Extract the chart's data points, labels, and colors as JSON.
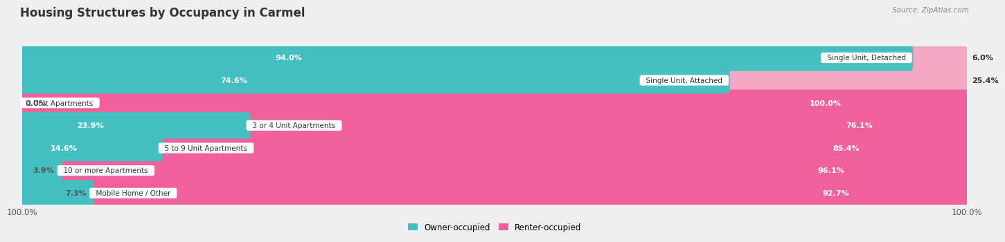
{
  "title": "Housing Structures by Occupancy in Carmel",
  "source": "Source: ZipAtlas.com",
  "categories": [
    "Single Unit, Detached",
    "Single Unit, Attached",
    "2 Unit Apartments",
    "3 or 4 Unit Apartments",
    "5 to 9 Unit Apartments",
    "10 or more Apartments",
    "Mobile Home / Other"
  ],
  "owner_pct": [
    94.0,
    74.6,
    0.0,
    23.9,
    14.6,
    3.9,
    7.3
  ],
  "renter_pct": [
    6.0,
    25.4,
    100.0,
    76.1,
    85.4,
    96.1,
    92.7
  ],
  "owner_color": "#45BFBF",
  "renter_color_strong": "#F0609A",
  "renter_color_light": "#F5A8C5",
  "bg_color": "#EFEFEF",
  "bar_bg_color": "#E0E0E0",
  "title_fontsize": 12,
  "bar_height": 0.58,
  "renter_light_threshold": 30
}
